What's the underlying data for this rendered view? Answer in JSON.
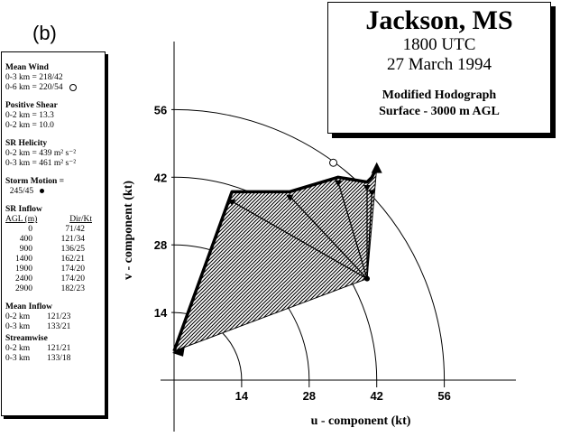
{
  "panel_label": "(b)",
  "title": {
    "city": "Jackson, MS",
    "time": "1800 UTC",
    "date": "27 March 1994",
    "subtitle1": "Modified Hodograph",
    "subtitle2": "Surface - 3000 m AGL"
  },
  "info": {
    "mean_wind": {
      "title": "Mean Wind",
      "rows": [
        "0-3 km = 218/42",
        "0-6 km = 220/54"
      ]
    },
    "positive_shear": {
      "title": "Positive Shear",
      "rows": [
        "0-2 km = 13.3",
        "0-2 km = 10.0"
      ]
    },
    "sr_helicity": {
      "title": "SR Helicity",
      "rows": [
        "0-2 km = 439 m² s⁻²",
        "0-3 km = 461 m² s⁻²"
      ]
    },
    "storm_motion": {
      "title": "Storm Motion =",
      "value": "245/45"
    },
    "sr_inflow": {
      "title": "SR Inflow",
      "header": [
        "AGL (m)",
        "Dir/Kt"
      ],
      "rows": [
        [
          "0",
          "71/42"
        ],
        [
          "400",
          "121/34"
        ],
        [
          "900",
          "136/25"
        ],
        [
          "1400",
          "162/21"
        ],
        [
          "1900",
          "174/20"
        ],
        [
          "2400",
          "174/20"
        ],
        [
          "2900",
          "182/23"
        ]
      ]
    },
    "mean_inflow": {
      "title": "Mean Inflow",
      "rows": [
        [
          "0-2 km",
          "121/23"
        ],
        [
          "0-3 km",
          "133/21"
        ]
      ]
    },
    "streamwise": {
      "title": "Streamwise",
      "rows": [
        [
          "0-2 km",
          "121/21"
        ],
        [
          "0-3 km",
          "133/18"
        ]
      ]
    }
  },
  "chart_data": {
    "type": "scatter",
    "xlabel": "u - component (kt)",
    "ylabel": "v - component (kt)",
    "x_ticks": [
      14,
      28,
      42,
      56
    ],
    "y_ticks": [
      14,
      28,
      42,
      56
    ],
    "xlim": [
      -2,
      70
    ],
    "ylim": [
      -10,
      66
    ],
    "range_rings_kt": [
      14,
      28,
      42,
      56
    ],
    "hodograph": {
      "x": [
        0,
        12,
        24,
        34,
        40,
        41,
        42
      ],
      "y": [
        6,
        39,
        39,
        42,
        41,
        42,
        44
      ]
    },
    "storm_motion_point": [
      40,
      21
    ],
    "mean_wind_point": [
      33,
      45
    ],
    "inflow_vector_ends": [
      [
        12,
        37
      ],
      [
        24,
        38
      ],
      [
        34,
        41
      ],
      [
        40,
        40
      ],
      [
        41,
        39
      ]
    ],
    "colors": {
      "line": "#000000",
      "fill": "#000000"
    }
  }
}
